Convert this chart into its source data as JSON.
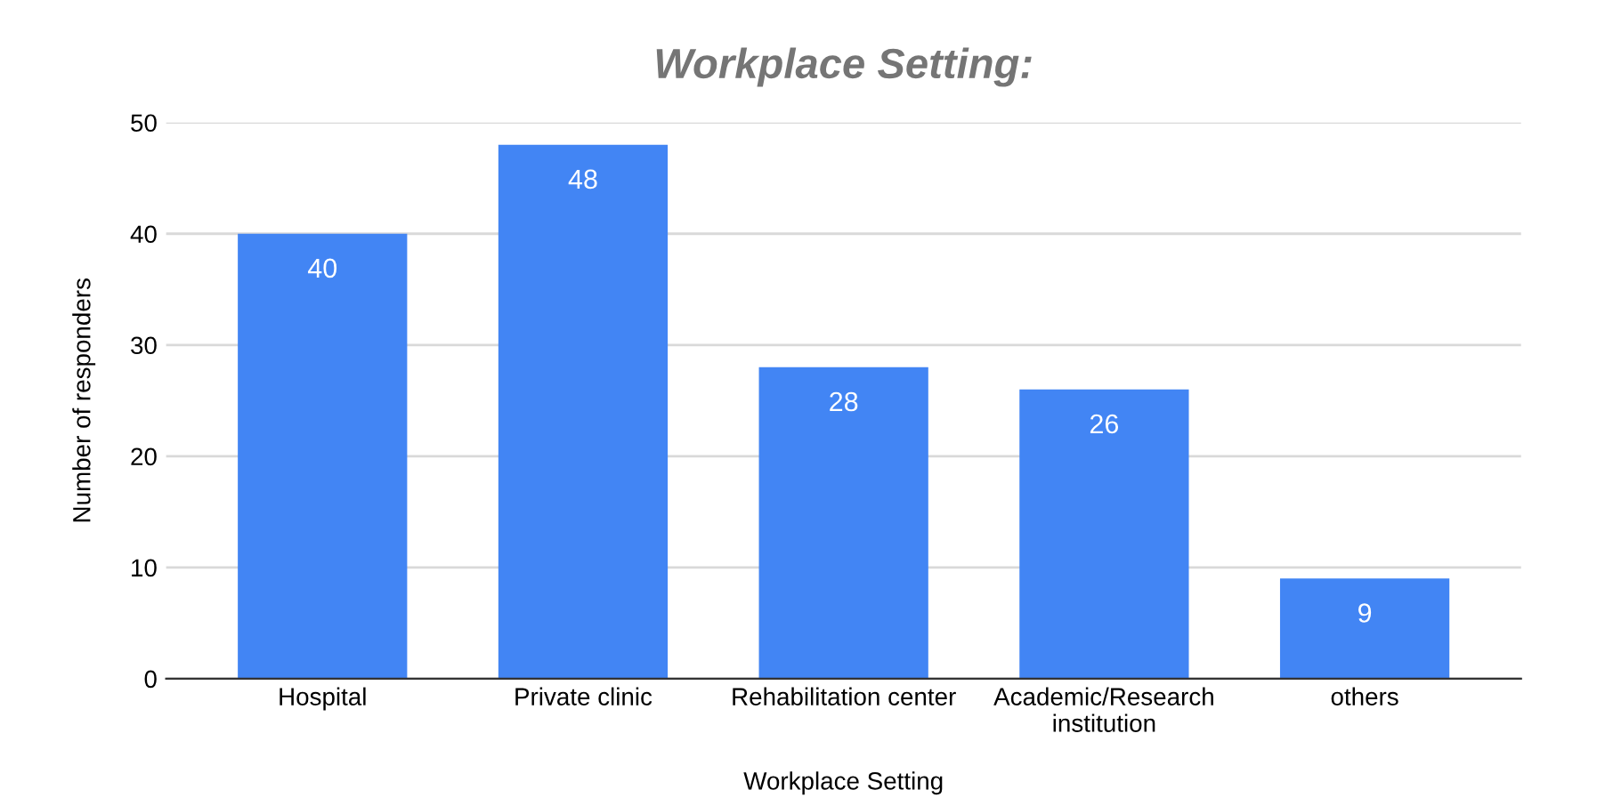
{
  "chart_data": {
    "type": "bar",
    "title": "Workplace Setting:",
    "xlabel": "Workplace Setting",
    "ylabel": "Number of responders",
    "categories": [
      "Hospital",
      "Private clinic",
      "Rehabilitation center",
      "Academic/Research\ninstitution",
      "others"
    ],
    "values": [
      40,
      48,
      28,
      26,
      9
    ],
    "color": "#4285f4",
    "ylim": [
      0,
      50
    ],
    "yticks": [
      0,
      10,
      20,
      30,
      40,
      50
    ],
    "grid": "y",
    "data_labels": true,
    "legend": false
  }
}
